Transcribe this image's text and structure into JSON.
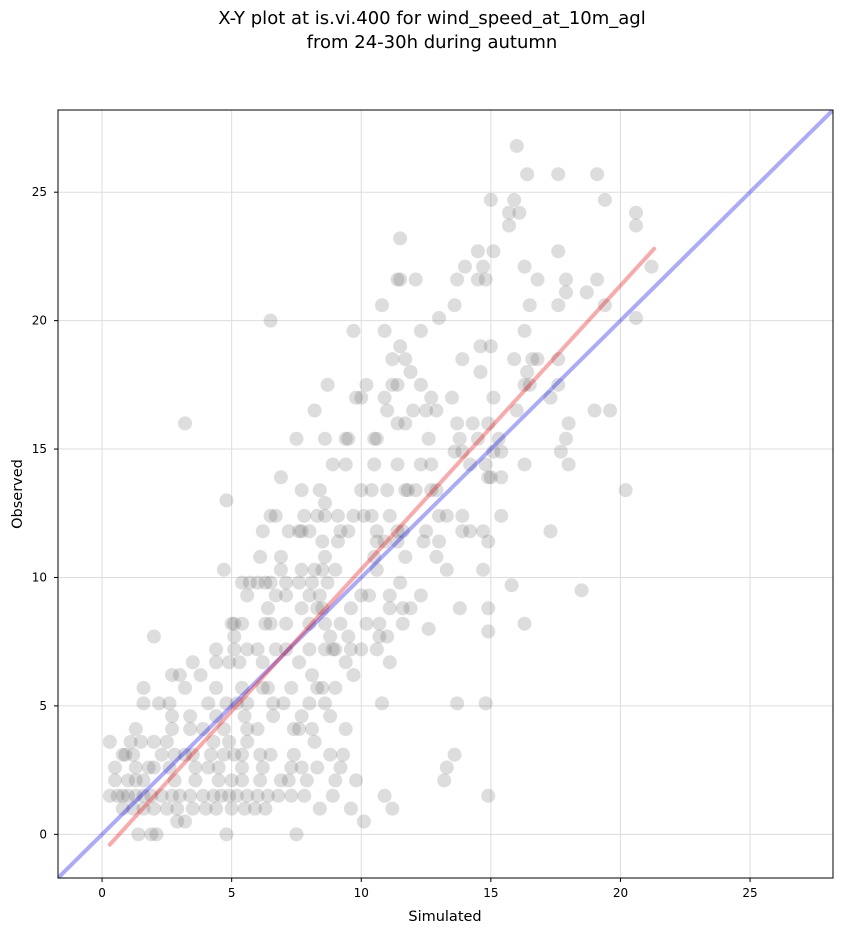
{
  "chart_data": {
    "type": "scatter",
    "title_line1": "X-Y plot at is.vi.400 for wind_speed_at_10m_agl",
    "title_line2": "from 24-30h during autumn",
    "xlabel": "Simulated",
    "ylabel": "Observed",
    "xlim": [
      -1.7,
      28.2
    ],
    "ylim": [
      -1.7,
      28.2
    ],
    "xticks": [
      0,
      5,
      10,
      15,
      20,
      25
    ],
    "yticks": [
      0,
      5,
      10,
      15,
      20,
      25
    ],
    "grid": true,
    "point_color": "#555555",
    "point_opacity": 0.2,
    "identity_line": {
      "color": "#0000ee",
      "from": [
        -1.7,
        -1.7
      ],
      "to": [
        28.2,
        28.2
      ]
    },
    "regression_line": {
      "color": "#ee0000",
      "from": [
        0.3,
        -0.4
      ],
      "to": [
        21.3,
        22.8
      ]
    },
    "points": [
      [
        3.2,
        16.0
      ],
      [
        6.5,
        20.0
      ],
      [
        4.8,
        13.0
      ],
      [
        4.7,
        10.3
      ],
      [
        2.0,
        7.7
      ],
      [
        16.0,
        26.8
      ],
      [
        16.4,
        25.7
      ],
      [
        17.6,
        25.7
      ],
      [
        19.1,
        25.7
      ],
      [
        15.9,
        24.7
      ],
      [
        15.0,
        24.7
      ],
      [
        19.4,
        24.7
      ],
      [
        15.7,
        24.2
      ],
      [
        16.1,
        24.2
      ],
      [
        20.6,
        24.2
      ],
      [
        15.7,
        23.7
      ],
      [
        20.6,
        23.7
      ],
      [
        11.5,
        23.2
      ],
      [
        14.5,
        22.7
      ],
      [
        15.1,
        22.7
      ],
      [
        17.6,
        22.7
      ],
      [
        14.0,
        22.1
      ],
      [
        14.7,
        22.1
      ],
      [
        16.3,
        22.1
      ],
      [
        21.2,
        22.1
      ],
      [
        11.4,
        21.6
      ],
      [
        11.5,
        21.6
      ],
      [
        12.1,
        21.6
      ],
      [
        13.7,
        21.6
      ],
      [
        14.5,
        21.6
      ],
      [
        14.8,
        21.6
      ],
      [
        16.8,
        21.6
      ],
      [
        17.9,
        21.6
      ],
      [
        19.1,
        21.6
      ],
      [
        17.9,
        21.1
      ],
      [
        18.7,
        21.1
      ],
      [
        10.8,
        20.6
      ],
      [
        13.6,
        20.6
      ],
      [
        16.5,
        20.6
      ],
      [
        17.6,
        20.6
      ],
      [
        19.4,
        20.6
      ],
      [
        13.0,
        20.1
      ],
      [
        20.6,
        20.1
      ],
      [
        9.7,
        19.6
      ],
      [
        10.9,
        19.6
      ],
      [
        12.3,
        19.6
      ],
      [
        16.3,
        19.6
      ],
      [
        11.5,
        19.0
      ],
      [
        14.6,
        19.0
      ],
      [
        15.0,
        19.0
      ],
      [
        11.7,
        18.5
      ],
      [
        11.2,
        18.5
      ],
      [
        13.9,
        18.5
      ],
      [
        15.9,
        18.5
      ],
      [
        16.6,
        18.5
      ],
      [
        16.8,
        18.5
      ],
      [
        17.6,
        18.5
      ],
      [
        11.9,
        18.0
      ],
      [
        14.6,
        18.0
      ],
      [
        16.4,
        18.0
      ],
      [
        8.7,
        17.5
      ],
      [
        10.2,
        17.5
      ],
      [
        11.2,
        17.5
      ],
      [
        11.4,
        17.5
      ],
      [
        12.3,
        17.5
      ],
      [
        16.3,
        17.5
      ],
      [
        16.5,
        17.5
      ],
      [
        17.6,
        17.5
      ],
      [
        9.8,
        17.0
      ],
      [
        10.0,
        17.0
      ],
      [
        10.9,
        17.0
      ],
      [
        12.7,
        17.0
      ],
      [
        13.5,
        17.0
      ],
      [
        15.1,
        17.0
      ],
      [
        17.3,
        17.0
      ],
      [
        8.2,
        16.5
      ],
      [
        11.0,
        16.5
      ],
      [
        12.0,
        16.5
      ],
      [
        12.5,
        16.5
      ],
      [
        12.9,
        16.5
      ],
      [
        16.0,
        16.5
      ],
      [
        19.0,
        16.5
      ],
      [
        19.6,
        16.5
      ],
      [
        11.4,
        16.0
      ],
      [
        11.7,
        16.0
      ],
      [
        13.7,
        16.0
      ],
      [
        14.3,
        16.0
      ],
      [
        14.9,
        16.0
      ],
      [
        18.0,
        16.0
      ],
      [
        7.5,
        15.4
      ],
      [
        8.6,
        15.4
      ],
      [
        9.4,
        15.4
      ],
      [
        9.5,
        15.4
      ],
      [
        10.5,
        15.4
      ],
      [
        10.6,
        15.4
      ],
      [
        12.6,
        15.4
      ],
      [
        13.8,
        15.4
      ],
      [
        14.5,
        15.4
      ],
      [
        15.3,
        15.4
      ],
      [
        17.9,
        15.4
      ],
      [
        13.6,
        14.9
      ],
      [
        13.9,
        14.9
      ],
      [
        15.1,
        14.9
      ],
      [
        15.4,
        14.9
      ],
      [
        17.7,
        14.9
      ],
      [
        8.9,
        14.4
      ],
      [
        9.4,
        14.4
      ],
      [
        10.5,
        14.4
      ],
      [
        11.4,
        14.4
      ],
      [
        12.3,
        14.4
      ],
      [
        12.7,
        14.4
      ],
      [
        14.2,
        14.4
      ],
      [
        14.8,
        14.4
      ],
      [
        16.3,
        14.4
      ],
      [
        18.0,
        14.4
      ],
      [
        15.0,
        13.9
      ],
      [
        15.4,
        13.9
      ],
      [
        14.9,
        13.9
      ],
      [
        10.4,
        13.4
      ],
      [
        10.0,
        13.4
      ],
      [
        11.0,
        13.4
      ],
      [
        11.8,
        13.4
      ],
      [
        11.7,
        13.4
      ],
      [
        12.1,
        13.4
      ],
      [
        12.7,
        13.4
      ],
      [
        12.9,
        13.4
      ],
      [
        8.4,
        13.4
      ],
      [
        20.2,
        13.4
      ],
      [
        7.6,
        11.8
      ],
      [
        9.1,
        12.4
      ],
      [
        9.7,
        12.4
      ],
      [
        10.1,
        12.4
      ],
      [
        10.4,
        12.4
      ],
      [
        11.1,
        12.4
      ],
      [
        13.0,
        12.4
      ],
      [
        13.3,
        12.4
      ],
      [
        13.9,
        12.4
      ],
      [
        15.4,
        12.4
      ],
      [
        17.3,
        11.8
      ],
      [
        6.9,
        13.9
      ],
      [
        7.7,
        13.4
      ],
      [
        6.5,
        12.4
      ],
      [
        6.7,
        12.4
      ],
      [
        7.8,
        12.4
      ],
      [
        8.3,
        12.4
      ],
      [
        8.6,
        12.9
      ],
      [
        8.6,
        12.4
      ],
      [
        9.2,
        11.8
      ],
      [
        9.5,
        11.8
      ],
      [
        10.6,
        11.8
      ],
      [
        11.4,
        11.8
      ],
      [
        11.6,
        11.8
      ],
      [
        12.5,
        11.8
      ],
      [
        13.9,
        11.8
      ],
      [
        14.2,
        11.8
      ],
      [
        14.7,
        11.8
      ],
      [
        6.2,
        11.8
      ],
      [
        7.2,
        11.8
      ],
      [
        7.7,
        11.8
      ],
      [
        8.0,
        11.8
      ],
      [
        8.5,
        11.4
      ],
      [
        9.1,
        11.4
      ],
      [
        10.6,
        11.4
      ],
      [
        10.9,
        11.4
      ],
      [
        11.4,
        11.4
      ],
      [
        12.4,
        11.4
      ],
      [
        13.0,
        11.4
      ],
      [
        14.9,
        11.4
      ],
      [
        6.9,
        10.8
      ],
      [
        6.1,
        10.8
      ],
      [
        8.6,
        10.8
      ],
      [
        10.5,
        10.8
      ],
      [
        11.7,
        10.8
      ],
      [
        12.9,
        10.8
      ],
      [
        13.3,
        10.3
      ],
      [
        14.7,
        10.3
      ],
      [
        6.9,
        10.3
      ],
      [
        7.7,
        10.3
      ],
      [
        8.2,
        10.3
      ],
      [
        8.5,
        10.3
      ],
      [
        9.0,
        10.3
      ],
      [
        10.6,
        10.3
      ],
      [
        5.4,
        9.8
      ],
      [
        5.7,
        9.8
      ],
      [
        6.0,
        9.8
      ],
      [
        6.3,
        9.8
      ],
      [
        6.5,
        9.8
      ],
      [
        7.1,
        9.8
      ],
      [
        7.6,
        9.8
      ],
      [
        8.1,
        9.8
      ],
      [
        8.7,
        9.8
      ],
      [
        11.5,
        9.8
      ],
      [
        15.8,
        9.7
      ],
      [
        18.5,
        9.5
      ],
      [
        5.6,
        9.3
      ],
      [
        6.7,
        9.3
      ],
      [
        7.1,
        9.3
      ],
      [
        8.0,
        9.3
      ],
      [
        8.4,
        9.3
      ],
      [
        10.0,
        9.3
      ],
      [
        10.3,
        9.3
      ],
      [
        11.1,
        9.3
      ],
      [
        12.3,
        9.3
      ],
      [
        6.4,
        8.8
      ],
      [
        7.7,
        8.8
      ],
      [
        8.3,
        8.8
      ],
      [
        8.5,
        8.8
      ],
      [
        9.6,
        8.8
      ],
      [
        11.1,
        8.8
      ],
      [
        11.6,
        8.8
      ],
      [
        11.9,
        8.8
      ],
      [
        13.8,
        8.8
      ],
      [
        14.9,
        8.8
      ],
      [
        5.0,
        8.2
      ],
      [
        5.1,
        8.2
      ],
      [
        5.4,
        8.2
      ],
      [
        6.3,
        8.2
      ],
      [
        6.5,
        8.2
      ],
      [
        7.1,
        8.2
      ],
      [
        8.0,
        8.2
      ],
      [
        8.6,
        8.2
      ],
      [
        9.2,
        8.2
      ],
      [
        10.2,
        8.2
      ],
      [
        10.7,
        8.2
      ],
      [
        11.6,
        8.2
      ],
      [
        16.3,
        8.2
      ],
      [
        5.1,
        7.7
      ],
      [
        8.8,
        7.7
      ],
      [
        9.5,
        7.7
      ],
      [
        10.7,
        7.7
      ],
      [
        11.0,
        7.7
      ],
      [
        12.6,
        8.0
      ],
      [
        14.9,
        7.9
      ],
      [
        4.4,
        7.2
      ],
      [
        5.1,
        7.2
      ],
      [
        5.6,
        7.2
      ],
      [
        6.0,
        7.2
      ],
      [
        6.7,
        7.2
      ],
      [
        7.1,
        7.2
      ],
      [
        8.0,
        7.2
      ],
      [
        8.6,
        7.2
      ],
      [
        8.9,
        7.2
      ],
      [
        9.0,
        7.2
      ],
      [
        9.6,
        7.2
      ],
      [
        10.0,
        7.2
      ],
      [
        10.6,
        7.2
      ],
      [
        2.7,
        6.2
      ],
      [
        3.0,
        6.2
      ],
      [
        3.5,
        6.7
      ],
      [
        3.8,
        6.2
      ],
      [
        4.4,
        6.7
      ],
      [
        4.9,
        6.7
      ],
      [
        5.3,
        6.7
      ],
      [
        6.2,
        6.7
      ],
      [
        7.6,
        6.7
      ],
      [
        8.1,
        6.2
      ],
      [
        9.4,
        6.7
      ],
      [
        9.7,
        6.2
      ],
      [
        11.1,
        6.7
      ],
      [
        1.6,
        5.7
      ],
      [
        1.6,
        5.1
      ],
      [
        3.2,
        5.7
      ],
      [
        4.4,
        5.7
      ],
      [
        5.4,
        5.7
      ],
      [
        6.2,
        5.7
      ],
      [
        6.4,
        5.7
      ],
      [
        7.3,
        5.7
      ],
      [
        8.3,
        5.7
      ],
      [
        8.5,
        5.7
      ],
      [
        9.0,
        5.7
      ],
      [
        2.2,
        5.1
      ],
      [
        2.6,
        5.1
      ],
      [
        4.1,
        5.1
      ],
      [
        4.8,
        5.1
      ],
      [
        5.2,
        5.1
      ],
      [
        5.6,
        5.1
      ],
      [
        6.6,
        5.1
      ],
      [
        7.0,
        5.1
      ],
      [
        8.0,
        5.1
      ],
      [
        8.6,
        5.1
      ],
      [
        10.8,
        5.1
      ],
      [
        13.7,
        5.1
      ],
      [
        14.8,
        5.1
      ],
      [
        2.7,
        4.6
      ],
      [
        3.4,
        4.6
      ],
      [
        4.4,
        4.6
      ],
      [
        5.5,
        4.6
      ],
      [
        6.6,
        4.6
      ],
      [
        7.7,
        4.6
      ],
      [
        8.8,
        4.6
      ],
      [
        1.3,
        4.1
      ],
      [
        2.7,
        4.1
      ],
      [
        3.4,
        4.1
      ],
      [
        3.9,
        4.1
      ],
      [
        4.7,
        4.1
      ],
      [
        5.6,
        4.1
      ],
      [
        6.0,
        4.1
      ],
      [
        7.4,
        4.1
      ],
      [
        7.6,
        4.1
      ],
      [
        8.1,
        4.1
      ],
      [
        9.4,
        4.1
      ],
      [
        0.3,
        3.6
      ],
      [
        1.1,
        3.6
      ],
      [
        1.5,
        3.6
      ],
      [
        2.0,
        3.6
      ],
      [
        2.5,
        3.6
      ],
      [
        4.3,
        3.6
      ],
      [
        4.9,
        3.6
      ],
      [
        5.6,
        3.6
      ],
      [
        8.2,
        3.6
      ],
      [
        0.8,
        3.1
      ],
      [
        0.9,
        3.1
      ],
      [
        1.2,
        3.1
      ],
      [
        2.3,
        3.1
      ],
      [
        2.8,
        3.1
      ],
      [
        3.2,
        3.1
      ],
      [
        3.5,
        3.1
      ],
      [
        4.2,
        3.1
      ],
      [
        4.7,
        3.1
      ],
      [
        5.1,
        3.1
      ],
      [
        5.4,
        3.1
      ],
      [
        6.1,
        3.1
      ],
      [
        6.5,
        3.1
      ],
      [
        7.4,
        3.1
      ],
      [
        8.8,
        3.1
      ],
      [
        9.3,
        3.1
      ],
      [
        13.6,
        3.1
      ],
      [
        0.5,
        2.6
      ],
      [
        1.3,
        2.6
      ],
      [
        1.8,
        2.6
      ],
      [
        2.0,
        2.6
      ],
      [
        2.6,
        2.6
      ],
      [
        3.6,
        2.6
      ],
      [
        4.1,
        2.6
      ],
      [
        4.5,
        2.6
      ],
      [
        5.4,
        2.6
      ],
      [
        6.2,
        2.6
      ],
      [
        7.3,
        2.6
      ],
      [
        7.7,
        2.6
      ],
      [
        8.3,
        2.6
      ],
      [
        9.2,
        2.6
      ],
      [
        13.3,
        2.6
      ],
      [
        0.5,
        2.1
      ],
      [
        1.0,
        2.1
      ],
      [
        1.3,
        2.1
      ],
      [
        1.6,
        2.1
      ],
      [
        2.8,
        2.1
      ],
      [
        3.6,
        2.1
      ],
      [
        4.5,
        2.1
      ],
      [
        5.0,
        2.1
      ],
      [
        5.4,
        2.1
      ],
      [
        6.1,
        2.1
      ],
      [
        6.9,
        2.1
      ],
      [
        7.2,
        2.1
      ],
      [
        7.9,
        2.1
      ],
      [
        9.0,
        2.1
      ],
      [
        9.8,
        2.1
      ],
      [
        13.2,
        2.1
      ],
      [
        0.3,
        1.5
      ],
      [
        0.6,
        1.5
      ],
      [
        0.8,
        1.5
      ],
      [
        1.0,
        1.5
      ],
      [
        1.3,
        1.5
      ],
      [
        1.6,
        1.5
      ],
      [
        1.9,
        1.5
      ],
      [
        2.3,
        1.5
      ],
      [
        2.7,
        1.5
      ],
      [
        3.0,
        1.5
      ],
      [
        3.4,
        1.5
      ],
      [
        3.9,
        1.5
      ],
      [
        4.3,
        1.5
      ],
      [
        4.6,
        1.5
      ],
      [
        4.9,
        1.5
      ],
      [
        5.2,
        1.5
      ],
      [
        5.6,
        1.5
      ],
      [
        6.0,
        1.5
      ],
      [
        6.4,
        1.5
      ],
      [
        6.8,
        1.5
      ],
      [
        7.3,
        1.5
      ],
      [
        7.8,
        1.5
      ],
      [
        8.9,
        1.5
      ],
      [
        10.9,
        1.5
      ],
      [
        14.9,
        1.5
      ],
      [
        0.8,
        1.0
      ],
      [
        1.2,
        1.0
      ],
      [
        1.6,
        1.0
      ],
      [
        2.0,
        1.0
      ],
      [
        2.5,
        1.0
      ],
      [
        2.9,
        1.0
      ],
      [
        3.5,
        1.0
      ],
      [
        4.0,
        1.0
      ],
      [
        4.4,
        1.0
      ],
      [
        5.0,
        1.0
      ],
      [
        5.5,
        1.0
      ],
      [
        5.9,
        1.0
      ],
      [
        6.3,
        1.0
      ],
      [
        8.4,
        1.0
      ],
      [
        9.6,
        1.0
      ],
      [
        11.2,
        1.0
      ],
      [
        1.4,
        0.0
      ],
      [
        1.9,
        0.0
      ],
      [
        2.1,
        0.0
      ],
      [
        4.8,
        0.0
      ],
      [
        7.5,
        0.0
      ],
      [
        2.9,
        0.5
      ],
      [
        3.2,
        0.5
      ],
      [
        10.1,
        0.5
      ]
    ]
  }
}
